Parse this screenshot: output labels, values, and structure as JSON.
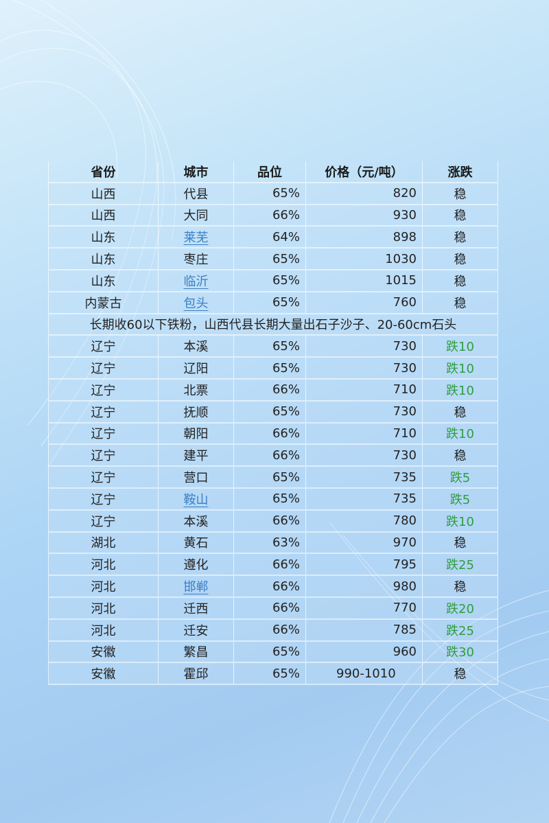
{
  "table": {
    "headers": [
      "省份",
      "城市",
      "品位",
      "价格（元/吨）",
      "涨跌"
    ],
    "rows_top": [
      {
        "province": "山西",
        "city": "代县",
        "city_link": false,
        "grade": "65%",
        "price": "820",
        "change": "稳"
      },
      {
        "province": "山西",
        "city": "大同",
        "city_link": false,
        "grade": "66%",
        "price": "930",
        "change": "稳"
      },
      {
        "province": "山东",
        "city": "莱芜",
        "city_link": true,
        "grade": "64%",
        "price": "898",
        "change": "稳"
      },
      {
        "province": "山东",
        "city": "枣庄",
        "city_link": false,
        "grade": "65%",
        "price": "1030",
        "change": "稳"
      },
      {
        "province": "山东",
        "city": "临沂",
        "city_link": true,
        "grade": "65%",
        "price": "1015",
        "change": "稳"
      },
      {
        "province": "内蒙古",
        "city": "包头",
        "city_link": true,
        "grade": "65%",
        "price": "760",
        "change": "稳"
      }
    ],
    "note": "长期收60以下铁粉，山西代县长期大量出石子沙子、20-60cm石头",
    "rows_bottom": [
      {
        "province": "辽宁",
        "city": "本溪",
        "city_link": false,
        "grade": "65%",
        "price": "730",
        "change": "跌10"
      },
      {
        "province": "辽宁",
        "city": "辽阳",
        "city_link": false,
        "grade": "65%",
        "price": "730",
        "change": "跌10"
      },
      {
        "province": "辽宁",
        "city": "北票",
        "city_link": false,
        "grade": "66%",
        "price": "710",
        "change": "跌10"
      },
      {
        "province": "辽宁",
        "city": "抚顺",
        "city_link": false,
        "grade": "65%",
        "price": "730",
        "change": "稳"
      },
      {
        "province": "辽宁",
        "city": "朝阳",
        "city_link": false,
        "grade": "66%",
        "price": "710",
        "change": "跌10"
      },
      {
        "province": "辽宁",
        "city": "建平",
        "city_link": false,
        "grade": "66%",
        "price": "730",
        "change": "稳"
      },
      {
        "province": "辽宁",
        "city": "营口",
        "city_link": false,
        "grade": "65%",
        "price": "735",
        "change": "跌5"
      },
      {
        "province": "辽宁",
        "city": "鞍山",
        "city_link": true,
        "grade": "65%",
        "price": "735",
        "change": "跌5"
      },
      {
        "province": "辽宁",
        "city": "本溪",
        "city_link": false,
        "grade": "66%",
        "price": "780",
        "change": "跌10"
      },
      {
        "province": "湖北",
        "city": "黄石",
        "city_link": false,
        "grade": "63%",
        "price": "970",
        "change": "稳"
      },
      {
        "province": "河北",
        "city": "遵化",
        "city_link": false,
        "grade": "66%",
        "price": "795",
        "change": "跌25"
      },
      {
        "province": "河北",
        "city": "邯郸",
        "city_link": true,
        "grade": "66%",
        "price": "980",
        "change": "稳"
      },
      {
        "province": "河北",
        "city": "迁西",
        "city_link": false,
        "grade": "66%",
        "price": "770",
        "change": "跌20"
      },
      {
        "province": "河北",
        "city": "迁安",
        "city_link": false,
        "grade": "66%",
        "price": "785",
        "change": "跌25"
      },
      {
        "province": "安徽",
        "city": "繁昌",
        "city_link": false,
        "grade": "65%",
        "price": "960",
        "change": "跌30"
      },
      {
        "province": "安徽",
        "city": "霍邱",
        "city_link": false,
        "grade": "65%",
        "price": "990-1010",
        "change": "稳"
      }
    ]
  },
  "colors": {
    "link": "#3a7fc4",
    "down": "#2f9e3f",
    "text": "#222222"
  }
}
